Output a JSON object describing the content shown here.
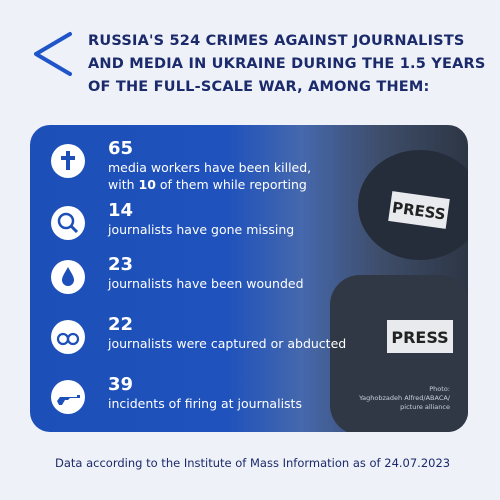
{
  "header": {
    "title_lines": [
      "RUSSIA'S 524 CRIMES AGAINST JOURNALISTS",
      "AND MEDIA IN UKRAINE DURING THE 1.5 YEARS",
      "OF THE FULL-SCALE WAR, AMONG THEM:"
    ]
  },
  "items": [
    {
      "number": "65",
      "lines": [
        "media workers have been killed,"
      ],
      "line2": {
        "before": "with",
        "highlight": "10",
        "after": "of them while reporting"
      }
    },
    {
      "number": "14",
      "lines": [
        "journalists have gone missing"
      ]
    },
    {
      "number": "23",
      "lines": [
        "journalists have been wounded"
      ]
    },
    {
      "number": "22",
      "lines": [
        "journalists were captured or abducted"
      ]
    },
    {
      "number": "39",
      "lines": [
        "incidents of firing at journalists"
      ]
    }
  ],
  "photo_credit": [
    "Photo:",
    "Yaghobzadeh Alfred/ABACA/",
    "picture alliance"
  ],
  "footer": "Data according to the Institute of Mass Information as of 24.07.2023"
}
